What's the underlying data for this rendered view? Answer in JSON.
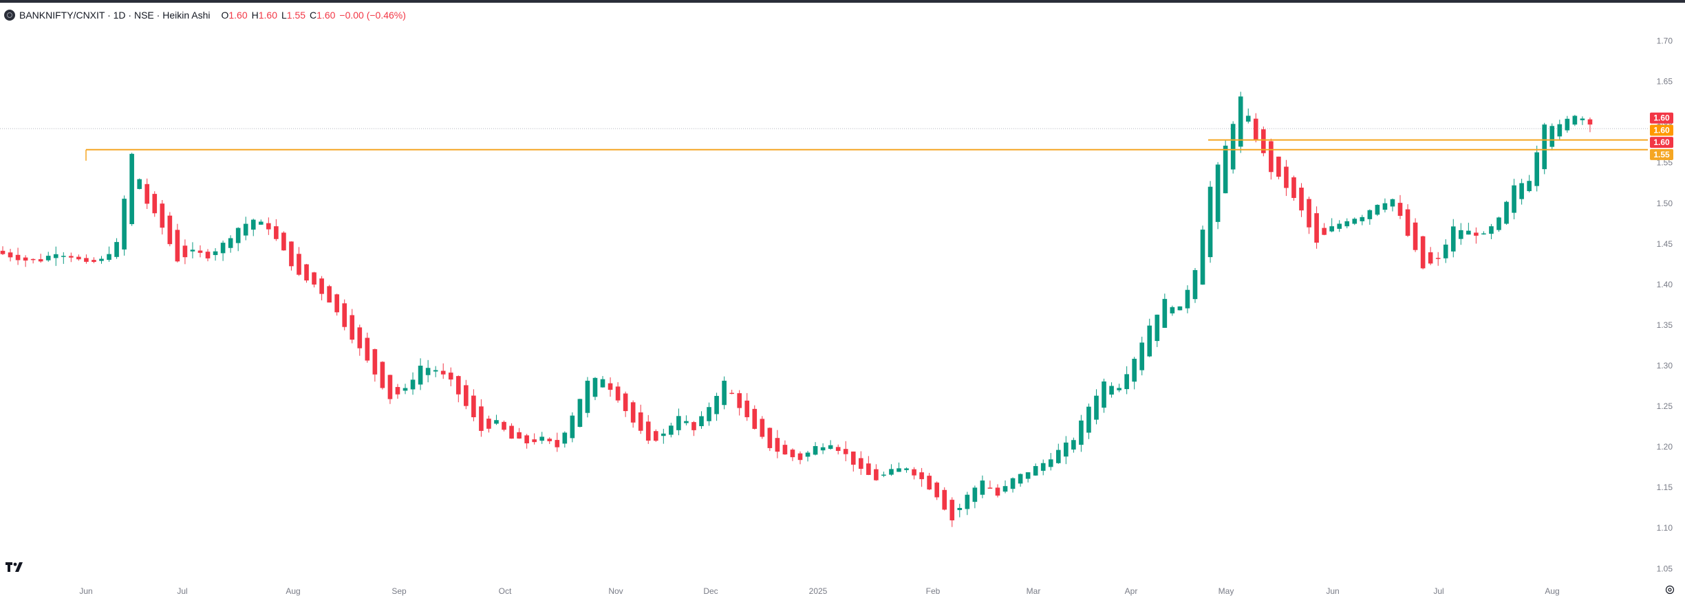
{
  "header": {
    "symbol": "BANKNIFTY/CNXIT · 1D · NSE · Heikin Ashi",
    "o_label": "O",
    "o_value": "1.60",
    "h_label": "H",
    "h_value": "1.60",
    "l_label": "L",
    "l_value": "1.55",
    "c_label": "C",
    "c_value": "1.60",
    "change": "−0.00 (−0.46%)"
  },
  "colors": {
    "up": "#089981",
    "down": "#f23645",
    "level": "#f5a623",
    "axis_text": "#787b86"
  },
  "price_labels": [
    {
      "text": "1.60",
      "color": "#f23645",
      "y": 1.605
    },
    {
      "text": "1.60",
      "color": "#ff9800",
      "y": 1.59
    },
    {
      "text": "1.60",
      "color": "#f23645",
      "y": 1.575
    },
    {
      "text": "1.55",
      "color": "#f5a623",
      "y": 1.56
    }
  ],
  "chart_data": {
    "type": "candlestick",
    "subtype": "heikin-ashi",
    "title": "BANKNIFTY/CNXIT · 1D · NSE · Heikin Ashi",
    "y_ticks": [
      "1.70",
      "1.65",
      "1.60",
      "1.55",
      "1.50",
      "1.45",
      "1.40",
      "1.35",
      "1.30",
      "1.25",
      "1.20",
      "1.15",
      "1.10",
      "1.05"
    ],
    "x_labels": [
      "Jun",
      "Jul",
      "Aug",
      "Sep",
      "Oct",
      "Nov",
      "Dec",
      "2025",
      "Feb",
      "Mar",
      "Apr",
      "May",
      "Jun",
      "Jul",
      "Aug"
    ],
    "ylim": [
      1.035,
      1.725
    ],
    "horizontal_levels": [
      {
        "value": 1.566,
        "from": "Jun",
        "color": "#f5a623"
      },
      {
        "value": 1.578,
        "from": "Apr",
        "color": "#f5a623"
      }
    ],
    "close_path": [
      [
        "May",
        1.44
      ],
      [
        "May",
        1.435
      ],
      [
        "May",
        1.43
      ],
      [
        "May",
        1.43
      ],
      [
        "May",
        1.44
      ],
      [
        "May",
        1.435
      ],
      [
        "May",
        1.425
      ],
      [
        "May",
        1.43
      ],
      [
        "May",
        1.45
      ],
      [
        "Jun",
        1.56
      ],
      [
        "Jun",
        1.5
      ],
      [
        "Jun",
        1.47
      ],
      [
        "Jun",
        1.43
      ],
      [
        "Jun",
        1.44
      ],
      [
        "Jun",
        1.435
      ],
      [
        "Jun",
        1.45
      ],
      [
        "Jun",
        1.47
      ],
      [
        "Jun",
        1.48
      ],
      [
        "Jul",
        1.47
      ],
      [
        "Jul",
        1.44
      ],
      [
        "Jul",
        1.41
      ],
      [
        "Jul",
        1.4
      ],
      [
        "Jul",
        1.38
      ],
      [
        "Jul",
        1.35
      ],
      [
        "Jul",
        1.32
      ],
      [
        "Jul",
        1.29
      ],
      [
        "Jul",
        1.26
      ],
      [
        "Aug",
        1.27
      ],
      [
        "Aug",
        1.3
      ],
      [
        "Aug",
        1.295
      ],
      [
        "Aug",
        1.28
      ],
      [
        "Aug",
        1.25
      ],
      [
        "Aug",
        1.22
      ],
      [
        "Aug",
        1.23
      ],
      [
        "Aug",
        1.21
      ],
      [
        "Sep",
        1.205
      ],
      [
        "Sep",
        1.21
      ],
      [
        "Sep",
        1.2
      ],
      [
        "Sep",
        1.24
      ],
      [
        "Sep",
        1.28
      ],
      [
        "Sep",
        1.285
      ],
      [
        "Oct",
        1.26
      ],
      [
        "Oct",
        1.23
      ],
      [
        "Oct",
        1.205
      ],
      [
        "Oct",
        1.215
      ],
      [
        "Oct",
        1.24
      ],
      [
        "Oct",
        1.22
      ],
      [
        "Oct",
        1.25
      ],
      [
        "Nov",
        1.28
      ],
      [
        "Nov",
        1.25
      ],
      [
        "Nov",
        1.22
      ],
      [
        "Nov",
        1.2
      ],
      [
        "Nov",
        1.19
      ],
      [
        "Nov",
        1.185
      ],
      [
        "Dec",
        1.2
      ],
      [
        "Dec",
        1.205
      ],
      [
        "Dec",
        1.19
      ],
      [
        "Dec",
        1.17
      ],
      [
        "Dec",
        1.16
      ],
      [
        "Dec",
        1.17
      ],
      [
        "Dec",
        1.175
      ],
      [
        "2025",
        1.16
      ],
      [
        "2025",
        1.14
      ],
      [
        "2025",
        1.11
      ],
      [
        "2025",
        1.14
      ],
      [
        "2025",
        1.16
      ],
      [
        "Feb",
        1.14
      ],
      [
        "Feb",
        1.16
      ],
      [
        "Feb",
        1.17
      ],
      [
        "Feb",
        1.18
      ],
      [
        "Feb",
        1.195
      ],
      [
        "Feb",
        1.21
      ],
      [
        "Mar",
        1.25
      ],
      [
        "Mar",
        1.28
      ],
      [
        "Mar",
        1.275
      ],
      [
        "Mar",
        1.31
      ],
      [
        "Mar",
        1.35
      ],
      [
        "Mar",
        1.38
      ],
      [
        "Apr",
        1.37
      ],
      [
        "Apr",
        1.42
      ],
      [
        "Apr",
        1.52
      ],
      [
        "Apr",
        1.57
      ],
      [
        "Apr",
        1.63
      ],
      [
        "Apr",
        1.58
      ],
      [
        "May",
        1.54
      ],
      [
        "May",
        1.52
      ],
      [
        "May",
        1.49
      ],
      [
        "May",
        1.45
      ],
      [
        "May",
        1.47
      ],
      [
        "May",
        1.48
      ],
      [
        "Jun",
        1.485
      ],
      [
        "Jun",
        1.5
      ],
      [
        "Jun",
        1.505
      ],
      [
        "Jun",
        1.46
      ],
      [
        "Jun",
        1.42
      ],
      [
        "Jun",
        1.43
      ],
      [
        "Jul",
        1.47
      ],
      [
        "Jul",
        1.465
      ],
      [
        "Jul",
        1.46
      ],
      [
        "Jul",
        1.48
      ],
      [
        "Jul",
        1.52
      ],
      [
        "Jul",
        1.53
      ],
      [
        "Aug",
        1.6
      ],
      [
        "Aug",
        1.595
      ],
      [
        "Aug",
        1.61
      ],
      [
        "Aug",
        1.6
      ]
    ]
  }
}
